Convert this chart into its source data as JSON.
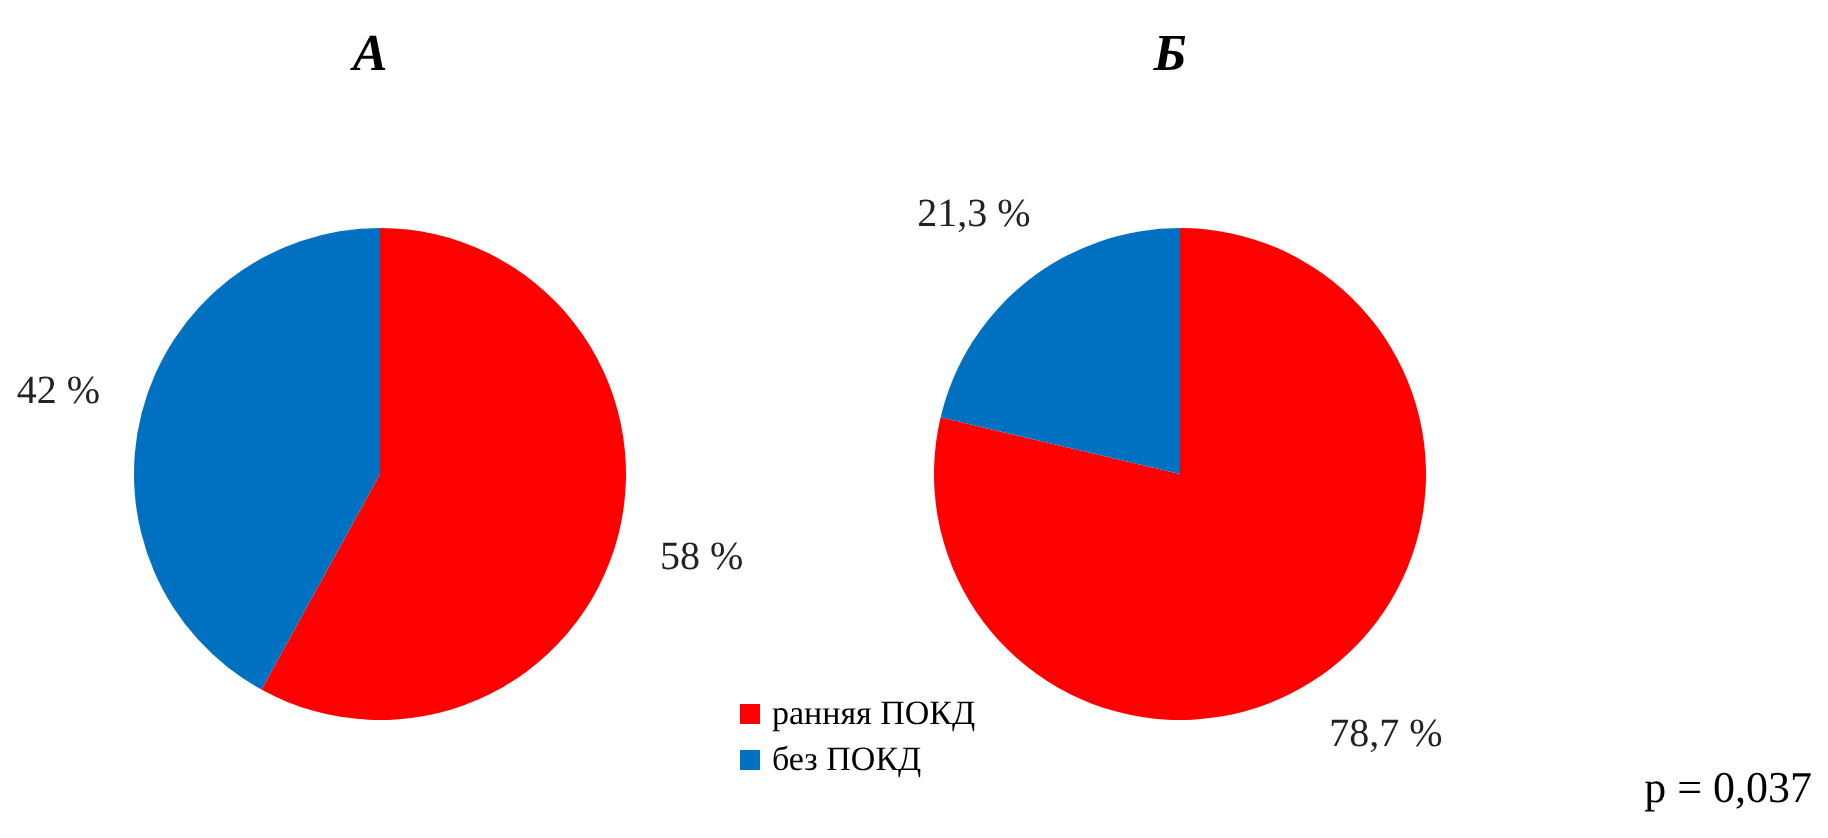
{
  "chart_data": [
    {
      "type": "pie",
      "title": "А",
      "categories": [
        null,
        null
      ],
      "values": [
        58,
        42
      ],
      "colors": [
        "#ff0000",
        "#0070c0"
      ],
      "value_labels": [
        "58 %",
        "42 %"
      ]
    },
    {
      "type": "pie",
      "title": "Б",
      "categories": [
        "ранняя ПОКД",
        "без ПОКД"
      ],
      "values": [
        78.7,
        21.3
      ],
      "colors": [
        "#ff0000",
        "#0070c0"
      ],
      "value_labels": [
        "78,7 %",
        "21,3 %"
      ],
      "legend": "bottom left",
      "annotations": [
        "p = 0,037"
      ]
    }
  ]
}
